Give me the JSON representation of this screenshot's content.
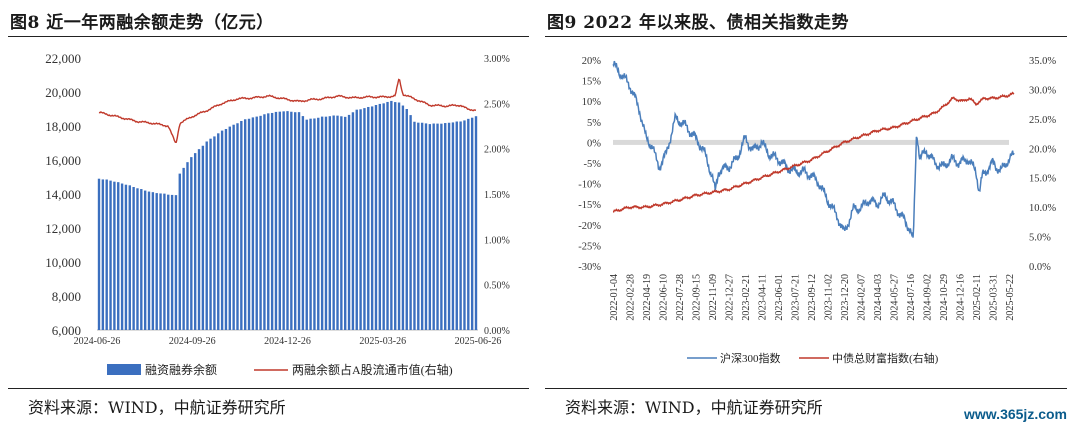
{
  "left": {
    "title": "图8  近一年两融余额走势（亿元）",
    "source": "资料来源：WIND，中航证券研究所"
  },
  "right": {
    "title": "图9  2022 年以来股、债相关指数走势",
    "source": "资料来源：WIND，中航证券研究所"
  },
  "watermark": "www.365jz.com",
  "chart_data": [
    {
      "type": "bar",
      "x_ticks": [
        "2024-06-26",
        "2024-09-26",
        "2024-12-26",
        "2025-03-26",
        "2025-06-26"
      ],
      "y_left": {
        "ticks": [
          "6,000",
          "8,000",
          "10,000",
          "12,000",
          "14,000",
          "16,000",
          "18,000",
          "20,000",
          "22,000"
        ],
        "range": [
          6000,
          22000
        ]
      },
      "y_right": {
        "ticks": [
          "0.00%",
          "0.50%",
          "1.00%",
          "1.50%",
          "2.00%",
          "2.50%",
          "3.00%"
        ],
        "range": [
          0,
          3.0
        ]
      },
      "colors": {
        "bars": "#3b6fbf",
        "line": "#c0392b"
      },
      "legend_position": "bottom",
      "grid": false,
      "series": [
        {
          "name": "融资融券余额",
          "type": "bar",
          "axis": "left",
          "keypoints": [
            [
              0,
              14900
            ],
            [
              2,
              14820
            ],
            [
              8,
              14500
            ],
            [
              14,
              14100
            ],
            [
              18,
              13950
            ],
            [
              20,
              13900
            ],
            [
              21,
              15200
            ],
            [
              24,
              16200
            ],
            [
              28,
              17100
            ],
            [
              32,
              17700
            ],
            [
              38,
              18400
            ],
            [
              44,
              18750
            ],
            [
              48,
              18850
            ],
            [
              52,
              18800
            ],
            [
              54,
              18400
            ],
            [
              58,
              18550
            ],
            [
              62,
              18600
            ],
            [
              64,
              18500
            ],
            [
              67,
              18950
            ],
            [
              72,
              19250
            ],
            [
              76,
              19450
            ],
            [
              78,
              19350
            ],
            [
              80,
              19000
            ],
            [
              82,
              18250
            ],
            [
              86,
              18150
            ],
            [
              90,
              18150
            ],
            [
              94,
              18250
            ],
            [
              96,
              18400
            ],
            [
              98,
              18600
            ]
          ]
        },
        {
          "name": "两融余额占A股流通市值(右轴)",
          "type": "line",
          "axis": "right",
          "keypoints": [
            [
              0,
              2.4
            ],
            [
              5,
              2.35
            ],
            [
              10,
              2.3
            ],
            [
              14,
              2.28
            ],
            [
              18,
              2.25
            ],
            [
              19,
              2.15
            ],
            [
              20,
              2.05
            ],
            [
              21,
              2.28
            ],
            [
              24,
              2.35
            ],
            [
              28,
              2.42
            ],
            [
              32,
              2.5
            ],
            [
              36,
              2.55
            ],
            [
              40,
              2.56
            ],
            [
              44,
              2.58
            ],
            [
              48,
              2.55
            ],
            [
              52,
              2.52
            ],
            [
              55,
              2.54
            ],
            [
              58,
              2.55
            ],
            [
              62,
              2.58
            ],
            [
              66,
              2.56
            ],
            [
              70,
              2.57
            ],
            [
              74,
              2.57
            ],
            [
              77,
              2.58
            ],
            [
              78,
              2.78
            ],
            [
              79,
              2.6
            ],
            [
              82,
              2.55
            ],
            [
              86,
              2.48
            ],
            [
              90,
              2.47
            ],
            [
              94,
              2.48
            ],
            [
              96,
              2.43
            ],
            [
              98,
              2.43
            ]
          ]
        }
      ]
    },
    {
      "type": "line",
      "x_ticks": [
        "2022-01-04",
        "2022-02-28",
        "2022-04-19",
        "2022-06-10",
        "2022-07-28",
        "2022-09-15",
        "2022-11-09",
        "2022-12-27",
        "2023-02-21",
        "2023-04-11",
        "2023-06-01",
        "2023-07-21",
        "2023-09-12",
        "2023-11-02",
        "2023-12-20",
        "2024-02-07",
        "2024-04-03",
        "2024-05-27",
        "2024-07-16",
        "2024-09-02",
        "2024-10-29",
        "2024-12-16",
        "2025-02-11",
        "2025-03-31",
        "2025-05-22"
      ],
      "y_left": {
        "ticks": [
          "-30%",
          "-25%",
          "-20%",
          "-15%",
          "-10%",
          "-5%",
          "0%",
          "5%",
          "10%",
          "15%",
          "20%"
        ],
        "range": [
          -30,
          20
        ]
      },
      "y_right": {
        "ticks": [
          "0.0%",
          "5.0%",
          "10.0%",
          "15.0%",
          "20.0%",
          "25.0%",
          "30.0%",
          "35.0%"
        ],
        "range": [
          0,
          35
        ]
      },
      "colors": {
        "hs300": "#4a7ebb",
        "bond": "#c0392b",
        "zero_band": "#d9d9d9"
      },
      "legend_position": "bottom",
      "grid": false,
      "series": [
        {
          "name": "沪深300指数",
          "axis": "left",
          "keypoints": [
            [
              0,
              19
            ],
            [
              1,
              14
            ],
            [
              1.6,
              8
            ],
            [
              2,
              1
            ],
            [
              2.4,
              -1
            ],
            [
              2.6,
              -4
            ],
            [
              2.8,
              -6
            ],
            [
              3.2,
              -3
            ],
            [
              3.8,
              6
            ],
            [
              4.4,
              4
            ],
            [
              5,
              1
            ],
            [
              5.5,
              -2
            ],
            [
              6,
              -8
            ],
            [
              6.2,
              -12
            ],
            [
              6.4,
              -7
            ],
            [
              7,
              -6
            ],
            [
              7.5,
              -4
            ],
            [
              8,
              1
            ],
            [
              8.5,
              -2
            ],
            [
              9,
              0
            ],
            [
              9.5,
              -3
            ],
            [
              10,
              -4
            ],
            [
              10.5,
              -6
            ],
            [
              11,
              -7
            ],
            [
              11.5,
              -7
            ],
            [
              12,
              -8
            ],
            [
              12.5,
              -10
            ],
            [
              13,
              -14
            ],
            [
              13.6,
              -18
            ],
            [
              14,
              -22
            ],
            [
              14.2,
              -20
            ],
            [
              14.6,
              -16
            ],
            [
              15,
              -16
            ],
            [
              15.5,
              -14
            ],
            [
              16,
              -15
            ],
            [
              16.5,
              -13
            ],
            [
              17,
              -15
            ],
            [
              17.5,
              -18
            ],
            [
              18,
              -21
            ],
            [
              18.2,
              -24
            ],
            [
              18.4,
              3
            ],
            [
              18.6,
              -4
            ],
            [
              19,
              -2
            ],
            [
              19.5,
              -5
            ],
            [
              20,
              -6
            ],
            [
              20.5,
              -4
            ],
            [
              21,
              -5
            ],
            [
              21.5,
              -4
            ],
            [
              22,
              -7
            ],
            [
              22.2,
              -12
            ],
            [
              22.4,
              -8
            ],
            [
              23,
              -5
            ],
            [
              23.5,
              -7
            ],
            [
              24,
              -4
            ],
            [
              24.3,
              -3
            ]
          ]
        },
        {
          "name": "中债总财富指数(右轴)",
          "axis": "right",
          "keypoints": [
            [
              0,
              9.2
            ],
            [
              1,
              10
            ],
            [
              2,
              10
            ],
            [
              3,
              10.5
            ],
            [
              4,
              11.2
            ],
            [
              5,
              12
            ],
            [
              6,
              12.5
            ],
            [
              7,
              13
            ],
            [
              8,
              14
            ],
            [
              9,
              15
            ],
            [
              10,
              16
            ],
            [
              11,
              17
            ],
            [
              12,
              18
            ],
            [
              13,
              19.5
            ],
            [
              14,
              21
            ],
            [
              15,
              22
            ],
            [
              16,
              23
            ],
            [
              17,
              23.5
            ],
            [
              18,
              24.5
            ],
            [
              19,
              25.5
            ],
            [
              19.5,
              26
            ],
            [
              20,
              27
            ],
            [
              20.6,
              28.5
            ],
            [
              21.2,
              28
            ],
            [
              21.6,
              28.5
            ],
            [
              22,
              27.5
            ],
            [
              22.5,
              28.5
            ],
            [
              23,
              28.5
            ],
            [
              23.5,
              28.7
            ],
            [
              24,
              29
            ],
            [
              24.3,
              29.3
            ]
          ]
        }
      ]
    }
  ]
}
